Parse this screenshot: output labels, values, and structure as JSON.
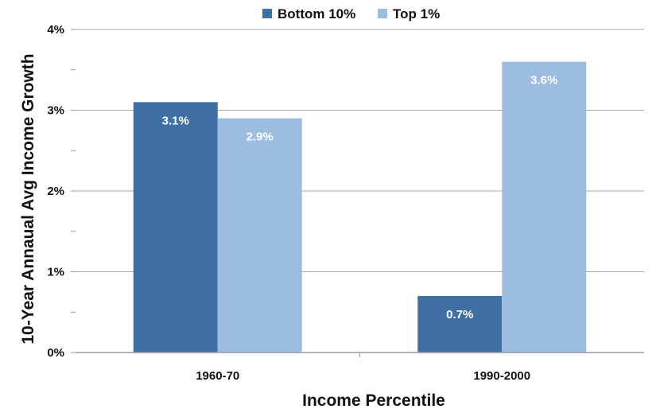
{
  "chart_data": {
    "type": "bar",
    "title": "",
    "xlabel": "Income Percentile",
    "ylabel": "10-Year Annaual Avg Income Growth",
    "categories": [
      "1960-70",
      "1990-2000"
    ],
    "series": [
      {
        "name": "Bottom 10%",
        "values": [
          3.1,
          0.7
        ],
        "labels": [
          "3.1%",
          "0.7%"
        ],
        "color": "#3f6fa3"
      },
      {
        "name": "Top 1%",
        "values": [
          2.9,
          3.6
        ],
        "labels": [
          "2.9%",
          "3.6%"
        ],
        "color": "#9dbde0"
      }
    ],
    "ylim": [
      0,
      4
    ],
    "yticks": [
      0,
      1,
      2,
      3,
      4
    ],
    "ytick_labels": [
      "0%",
      "1%",
      "2%",
      "3%",
      "4%"
    ],
    "grid": true,
    "legend_position": "top-center"
  }
}
